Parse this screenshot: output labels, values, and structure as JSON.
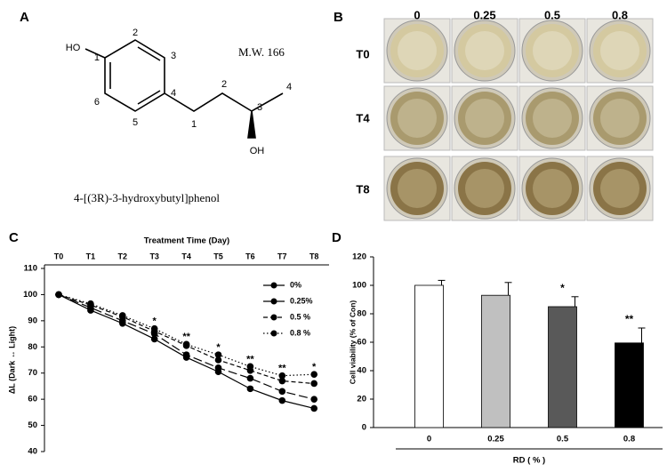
{
  "panels": {
    "a": {
      "letter": "A",
      "hydroxyl_left": "HO",
      "ring_numbers": [
        "1",
        "2",
        "3",
        "4",
        "5",
        "6"
      ],
      "chain_numbers": [
        "1",
        "2",
        "3",
        "4"
      ],
      "hydroxyl_bottom": "OH",
      "molecular_weight": "M.W. 166",
      "compound_name": "4-[(3R)-3-hydroxybutyl]phenol"
    },
    "b": {
      "letter": "B",
      "columns": [
        "0",
        "0.25",
        "0.5",
        "0.8"
      ],
      "rows": [
        "T0",
        "T4",
        "T8"
      ]
    },
    "c_letter": "C",
    "d_letter": "D"
  },
  "chart_data": [
    {
      "type": "line",
      "x_title": "Treatment Time (Day)",
      "y_title": "ΔL (Dark ↔ Light)",
      "categories": [
        "T0",
        "T1",
        "T2",
        "T3",
        "T4",
        "T5",
        "T6",
        "T7",
        "T8"
      ],
      "series": [
        {
          "name": "0%",
          "color": "#000000",
          "dash": "solid",
          "values": [
            100,
            94,
            89,
            83,
            76,
            70.5,
            64,
            59.5,
            56.5
          ]
        },
        {
          "name": "0.25%",
          "color": "#000000",
          "dash": "long-dash",
          "values": [
            100,
            95,
            90,
            85,
            77,
            72,
            68,
            63,
            60
          ]
        },
        {
          "name": "0.5 %",
          "color": "#000000",
          "dash": "dash",
          "values": [
            100,
            96,
            91.5,
            86,
            80.5,
            75,
            71,
            67,
            66
          ]
        },
        {
          "name": "0.8 %",
          "color": "#000000",
          "dash": "dot",
          "values": [
            100,
            96.5,
            92,
            87,
            81,
            77,
            72.5,
            69,
            69.5
          ]
        }
      ],
      "annotations": [
        null,
        null,
        null,
        "*",
        "**",
        "*",
        "**",
        "**",
        "*"
      ],
      "ylim": [
        40,
        110
      ],
      "yticks": [
        40,
        50,
        60,
        70,
        80,
        90,
        100,
        110
      ],
      "legend": "upper-right"
    },
    {
      "type": "bar",
      "y_title": "Cell viability (% of Con)",
      "x_title": "RD ( % )",
      "categories": [
        "0",
        "0.25",
        "0.5",
        "0.8"
      ],
      "values": [
        100,
        93,
        85,
        59.5
      ],
      "errors": [
        3.5,
        9,
        7,
        10.5
      ],
      "colors": [
        "#ffffff",
        "#c0c0c0",
        "#595959",
        "#000000"
      ],
      "annotations": [
        null,
        null,
        "*",
        "**"
      ],
      "ylim": [
        0,
        120
      ],
      "yticks": [
        0,
        20,
        40,
        60,
        80,
        100,
        120
      ]
    }
  ]
}
